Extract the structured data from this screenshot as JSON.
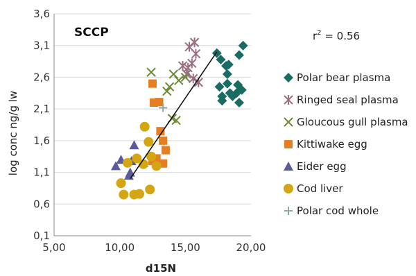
{
  "chart_data": {
    "type": "scatter",
    "title": "SCCP",
    "xlabel": "d15N",
    "ylabel": "log conc ng/g lw",
    "xlim": [
      5,
      20
    ],
    "ylim": [
      0.1,
      3.6
    ],
    "xticks": [
      5,
      10,
      15,
      20
    ],
    "xtick_labels": [
      "5,00",
      "10,00",
      "15,00",
      "20,00"
    ],
    "yticks": [
      0.1,
      0.6,
      1.1,
      1.6,
      2.1,
      2.6,
      3.1,
      3.6
    ],
    "ytick_labels": [
      "0,1",
      "0,6",
      "1,1",
      "1,6",
      "2,1",
      "2,6",
      "3,1",
      "3,6"
    ],
    "legend_position": "right",
    "annotation": {
      "prefix": "r",
      "sup": "2",
      "suffix": " = 0.56"
    },
    "trendline": {
      "x": [
        10.8,
        17.4
      ],
      "y": [
        1.0,
        3.0
      ]
    },
    "series": [
      {
        "name": "Polar bear plasma",
        "marker": "diamond",
        "color": "#1a6b62",
        "points": [
          [
            17.4,
            2.98
          ],
          [
            17.7,
            2.88
          ],
          [
            18.1,
            2.78
          ],
          [
            18.3,
            2.8
          ],
          [
            18.2,
            2.65
          ],
          [
            19.1,
            2.95
          ],
          [
            19.4,
            3.1
          ],
          [
            17.6,
            2.45
          ],
          [
            17.8,
            2.3
          ],
          [
            17.8,
            2.23
          ],
          [
            18.2,
            2.5
          ],
          [
            18.4,
            2.35
          ],
          [
            18.9,
            2.35
          ],
          [
            19.0,
            2.48
          ],
          [
            19.3,
            2.4
          ],
          [
            19.1,
            2.2
          ],
          [
            18.6,
            2.3
          ]
        ]
      },
      {
        "name": "Ringed seal plasma",
        "marker": "star",
        "color": "#9a6f82",
        "points": [
          [
            15.3,
            3.08
          ],
          [
            15.7,
            3.15
          ],
          [
            15.8,
            2.97
          ],
          [
            15.5,
            2.82
          ],
          [
            15.2,
            2.75
          ],
          [
            14.8,
            2.78
          ],
          [
            15.1,
            2.65
          ],
          [
            15.6,
            2.58
          ],
          [
            16.0,
            2.52
          ]
        ]
      },
      {
        "name": "Gloucous gull plasma",
        "marker": "x",
        "color": "#6b8a35",
        "points": [
          [
            12.4,
            2.68
          ],
          [
            14.5,
            2.55
          ],
          [
            14.1,
            2.65
          ],
          [
            13.8,
            2.45
          ],
          [
            13.6,
            2.38
          ],
          [
            15.0,
            2.6
          ],
          [
            14.0,
            1.95
          ],
          [
            14.3,
            1.92
          ]
        ]
      },
      {
        "name": "Kittiwake egg",
        "marker": "square",
        "color": "#e67e22",
        "points": [
          [
            12.5,
            2.5
          ],
          [
            12.6,
            2.2
          ],
          [
            13.0,
            2.21
          ],
          [
            13.1,
            1.75
          ],
          [
            13.3,
            1.6
          ],
          [
            13.5,
            1.45
          ],
          [
            12.8,
            1.32
          ],
          [
            12.5,
            1.28
          ],
          [
            13.3,
            1.24
          ]
        ]
      },
      {
        "name": "Eider egg",
        "marker": "triangle",
        "color": "#5b5b9a",
        "points": [
          [
            9.7,
            1.2
          ],
          [
            10.1,
            1.3
          ],
          [
            11.1,
            1.53
          ],
          [
            10.8,
            1.1
          ],
          [
            10.7,
            1.05
          ],
          [
            10.9,
            1.28
          ],
          [
            11.8,
            1.25
          ]
        ]
      },
      {
        "name": "Cod liver",
        "marker": "circle",
        "color": "#d4a614",
        "points": [
          [
            11.9,
            1.82
          ],
          [
            12.2,
            1.58
          ],
          [
            10.6,
            1.25
          ],
          [
            11.3,
            1.32
          ],
          [
            12.4,
            1.35
          ],
          [
            12.8,
            1.2
          ],
          [
            11.8,
            1.23
          ],
          [
            10.1,
            0.93
          ],
          [
            10.3,
            0.75
          ],
          [
            11.1,
            0.75
          ],
          [
            11.5,
            0.76
          ],
          [
            12.3,
            0.83
          ]
        ]
      },
      {
        "name": "Polar cod whole",
        "marker": "plus",
        "color": "#8fa6a6",
        "points": [
          [
            13.3,
            2.12
          ]
        ]
      }
    ]
  }
}
